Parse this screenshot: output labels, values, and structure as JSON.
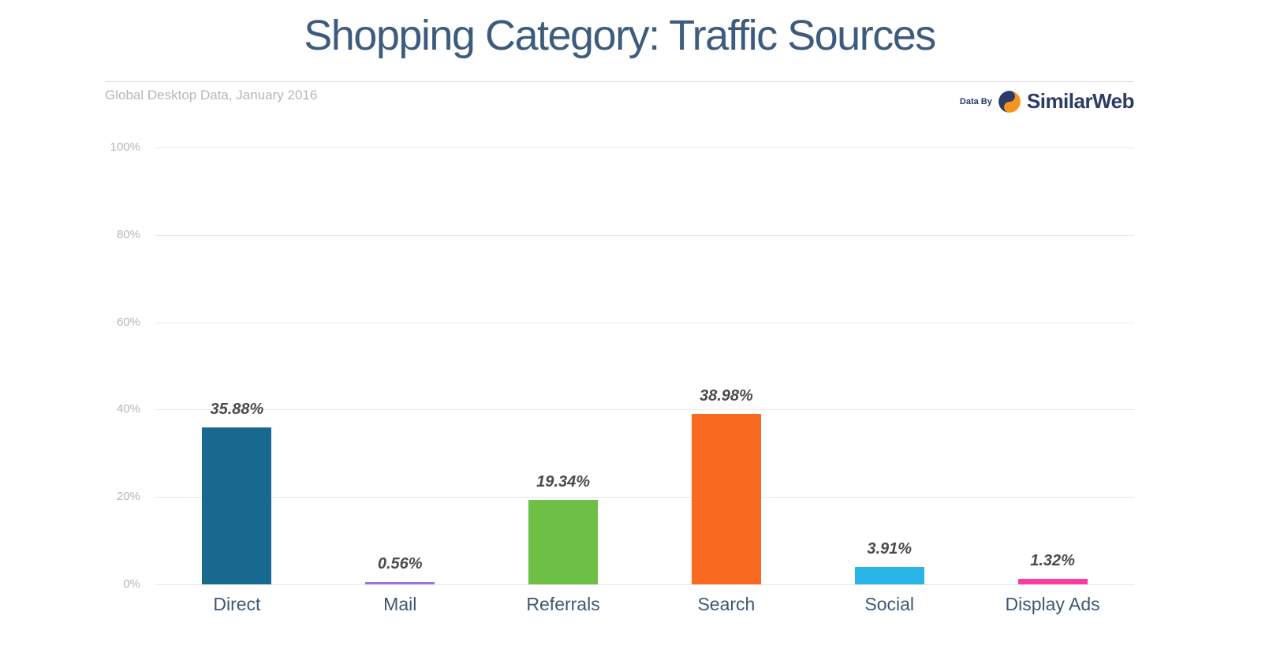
{
  "page": {
    "title": "Shopping Category: Traffic Sources",
    "subtitle": "Global Desktop Data, January 2016",
    "attribution": {
      "prefix": "Data By",
      "brand": "SimilarWeb"
    }
  },
  "colors": {
    "title": "#3d5c7d",
    "subtitle": "#b4b7bb",
    "axis_tick": "#b3b6ba",
    "category_label": "#3e5872",
    "value_label": "#4b4b4b",
    "gridline": "#e8e8e8",
    "brand_navy": "#2b3a66",
    "brand_orange": "#f7941e"
  },
  "chart_data": {
    "type": "bar",
    "title": "Shopping Category: Traffic Sources",
    "subtitle": "Global Desktop Data, January 2016",
    "categories": [
      "Direct",
      "Mail",
      "Referrals",
      "Search",
      "Social",
      "Display Ads"
    ],
    "values": [
      35.88,
      0.56,
      19.34,
      38.98,
      3.91,
      1.32
    ],
    "value_labels": [
      "35.88%",
      "0.56%",
      "19.34%",
      "38.98%",
      "3.91%",
      "1.32%"
    ],
    "bar_colors": [
      "#17698f",
      "#9673e3",
      "#6dbf45",
      "#fa6a21",
      "#29b5e8",
      "#fd3aa2"
    ],
    "xlabel": "",
    "ylabel": "",
    "ylim": [
      0,
      100
    ],
    "yticks": [
      {
        "label": "0%",
        "value": 0
      },
      {
        "label": "20%",
        "value": 20
      },
      {
        "label": "40%",
        "value": 40
      },
      {
        "label": "60%",
        "value": 60
      },
      {
        "label": "80%",
        "value": 80
      },
      {
        "label": "100%",
        "value": 100
      }
    ],
    "grid": "horizontal",
    "legend": "none"
  }
}
